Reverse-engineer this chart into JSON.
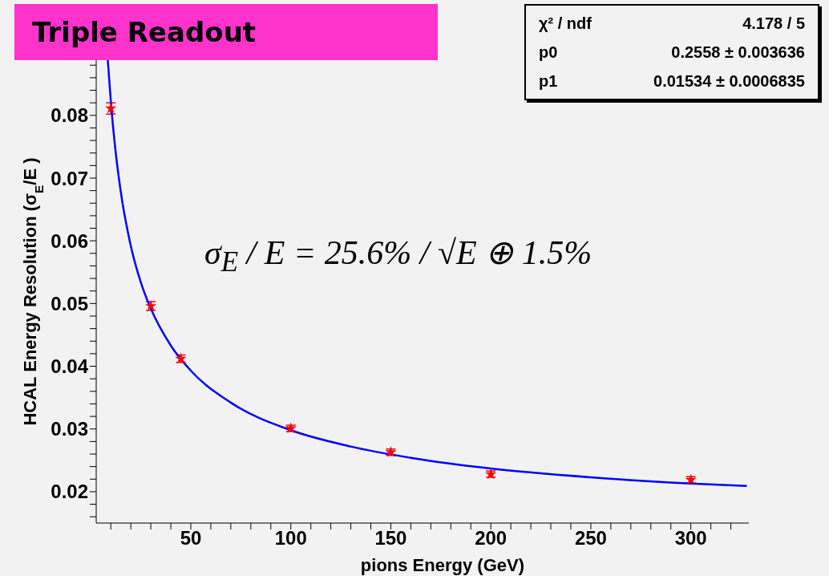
{
  "chart_data": {
    "type": "scatter",
    "title": "Triple Readout",
    "xlabel": "pions Energy (GeV)",
    "ylabel": "HCAL Energy Resolution (σ$_{E}$/E )",
    "annotations": [
      "χ² / ndf",
      "4.178 / 5",
      "p0",
      "0.2558 ± 0.003636",
      "p1",
      "0.01534 ± 0.0006835",
      "σ$_{E}$ / E = 25.6% / √E ⊕ 1.5%"
    ],
    "xlim": [
      2.7,
      329
    ],
    "ylim": [
      0.015,
      0.0888
    ],
    "xticks": [
      {
        "value": 10,
        "label": null
      },
      {
        "value": 20,
        "label": null
      },
      {
        "value": 30,
        "label": null
      },
      {
        "value": 40,
        "label": null
      },
      50,
      {
        "value": 60,
        "label": null
      },
      {
        "value": 70,
        "label": null
      },
      {
        "value": 80,
        "label": null
      },
      {
        "value": 90,
        "label": null
      },
      100,
      {
        "value": 110,
        "label": null
      },
      {
        "value": 120,
        "label": null
      },
      {
        "value": 130,
        "label": null
      },
      {
        "value": 140,
        "label": null
      },
      150,
      {
        "value": 160,
        "label": null
      },
      {
        "value": 170,
        "label": null
      },
      {
        "value": 180,
        "label": null
      },
      {
        "value": 190,
        "label": null
      },
      200,
      {
        "value": 210,
        "label": null
      },
      {
        "value": 220,
        "label": null
      },
      {
        "value": 230,
        "label": null
      },
      {
        "value": 240,
        "label": null
      },
      250,
      {
        "value": 260,
        "label": null
      },
      {
        "value": 270,
        "label": null
      },
      {
        "value": 280,
        "label": null
      },
      {
        "value": 290,
        "label": null
      },
      300,
      {
        "value": 310,
        "label": null
      },
      {
        "value": 320,
        "label": null
      }
    ],
    "yticks": [
      {
        "value": 0.016,
        "label": null
      },
      {
        "value": 0.018,
        "label": null
      },
      0.02,
      {
        "value": 0.022,
        "label": null
      },
      {
        "value": 0.024,
        "label": null
      },
      {
        "value": 0.026,
        "label": null
      },
      {
        "value": 0.028,
        "label": null
      },
      0.03,
      {
        "value": 0.032,
        "label": null
      },
      {
        "value": 0.034,
        "label": null
      },
      {
        "value": 0.036,
        "label": null
      },
      {
        "value": 0.038,
        "label": null
      },
      0.04,
      {
        "value": 0.042,
        "label": null
      },
      {
        "value": 0.044,
        "label": null
      },
      {
        "value": 0.046,
        "label": null
      },
      {
        "value": 0.048,
        "label": null
      },
      0.05,
      {
        "value": 0.052,
        "label": null
      },
      {
        "value": 0.054,
        "label": null
      },
      {
        "value": 0.056,
        "label": null
      },
      {
        "value": 0.058,
        "label": null
      },
      0.06,
      {
        "value": 0.062,
        "label": null
      },
      {
        "value": 0.064,
        "label": null
      },
      {
        "value": 0.066,
        "label": null
      },
      {
        "value": 0.068,
        "label": null
      },
      0.07,
      {
        "value": 0.072,
        "label": null
      },
      {
        "value": 0.074,
        "label": null
      },
      {
        "value": 0.076,
        "label": null
      },
      {
        "value": 0.078,
        "label": null
      },
      0.08,
      {
        "value": 0.082,
        "label": null
      },
      {
        "value": 0.084,
        "label": null
      },
      {
        "value": 0.086,
        "label": null
      },
      {
        "value": 0.088,
        "label": null
      }
    ],
    "series": [
      {
        "type": "scatter",
        "color": "#ff0000",
        "marker": "star",
        "x": [
          10,
          30,
          45,
          100,
          150,
          200,
          300
        ],
        "values": [
          0.0811,
          0.0496,
          0.0412,
          0.0301,
          0.0263,
          0.0228,
          0.0219
        ],
        "errors": [
          0.0009,
          0.0007,
          0.0006,
          0.0005,
          0.0005,
          0.0005,
          0.0005
        ]
      },
      {
        "type": "line",
        "color": "#0000ff",
        "marker": "none",
        "line_style": "solid",
        "x": [
          8.5,
          10,
          12,
          15,
          20,
          25,
          30,
          40,
          50,
          70,
          100,
          130,
          160,
          200,
          250,
          300,
          328
        ],
        "values": [
          0.0888,
          0.0823,
          0.0754,
          0.0678,
          0.0592,
          0.0534,
          0.0492,
          0.0433,
          0.0393,
          0.0342,
          0.0298,
          0.0272,
          0.0254,
          0.0237,
          0.0223,
          0.0213,
          0.0209
        ]
      }
    ]
  }
}
